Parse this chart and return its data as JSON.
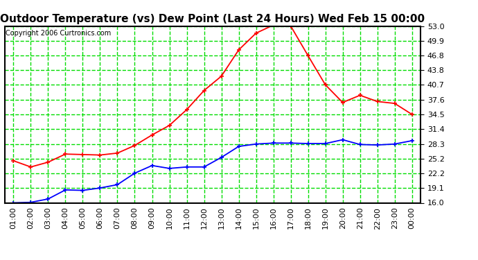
{
  "title": "Outdoor Temperature (vs) Dew Point (Last 24 Hours) Wed Feb 15 00:00",
  "copyright": "Copyright 2006 Curtronics.com",
  "background_color": "#ffffff",
  "plot_background": "#ffffff",
  "x_labels": [
    "01:00",
    "02:00",
    "03:00",
    "04:00",
    "05:00",
    "06:00",
    "07:00",
    "08:00",
    "09:00",
    "10:00",
    "11:00",
    "12:00",
    "13:00",
    "14:00",
    "15:00",
    "16:00",
    "17:00",
    "18:00",
    "19:00",
    "20:00",
    "21:00",
    "22:00",
    "23:00",
    "00:00"
  ],
  "ylim": [
    16.0,
    53.0
  ],
  "yticks": [
    16.0,
    19.1,
    22.2,
    25.2,
    28.3,
    31.4,
    34.5,
    37.6,
    40.7,
    43.8,
    46.8,
    49.9,
    53.0
  ],
  "temp_color": "#ff0000",
  "dew_color": "#0000ff",
  "grid_color": "#00dd00",
  "border_color": "#000000",
  "marker": "+",
  "markersize": 4,
  "linewidth": 1.3,
  "temp_data": [
    24.8,
    23.5,
    24.5,
    26.2,
    26.1,
    26.0,
    26.4,
    28.0,
    30.2,
    32.2,
    35.5,
    39.5,
    42.5,
    48.0,
    51.5,
    53.2,
    53.0,
    46.8,
    40.7,
    37.0,
    38.5,
    37.2,
    36.8,
    34.5
  ],
  "dew_data": [
    16.0,
    16.1,
    16.8,
    18.7,
    18.6,
    19.1,
    19.8,
    22.2,
    23.8,
    23.2,
    23.5,
    23.5,
    25.5,
    27.8,
    28.3,
    28.5,
    28.5,
    28.4,
    28.4,
    29.2,
    28.2,
    28.1,
    28.3,
    29.0
  ],
  "title_fontsize": 11,
  "tick_fontsize": 8,
  "copyright_fontsize": 7
}
